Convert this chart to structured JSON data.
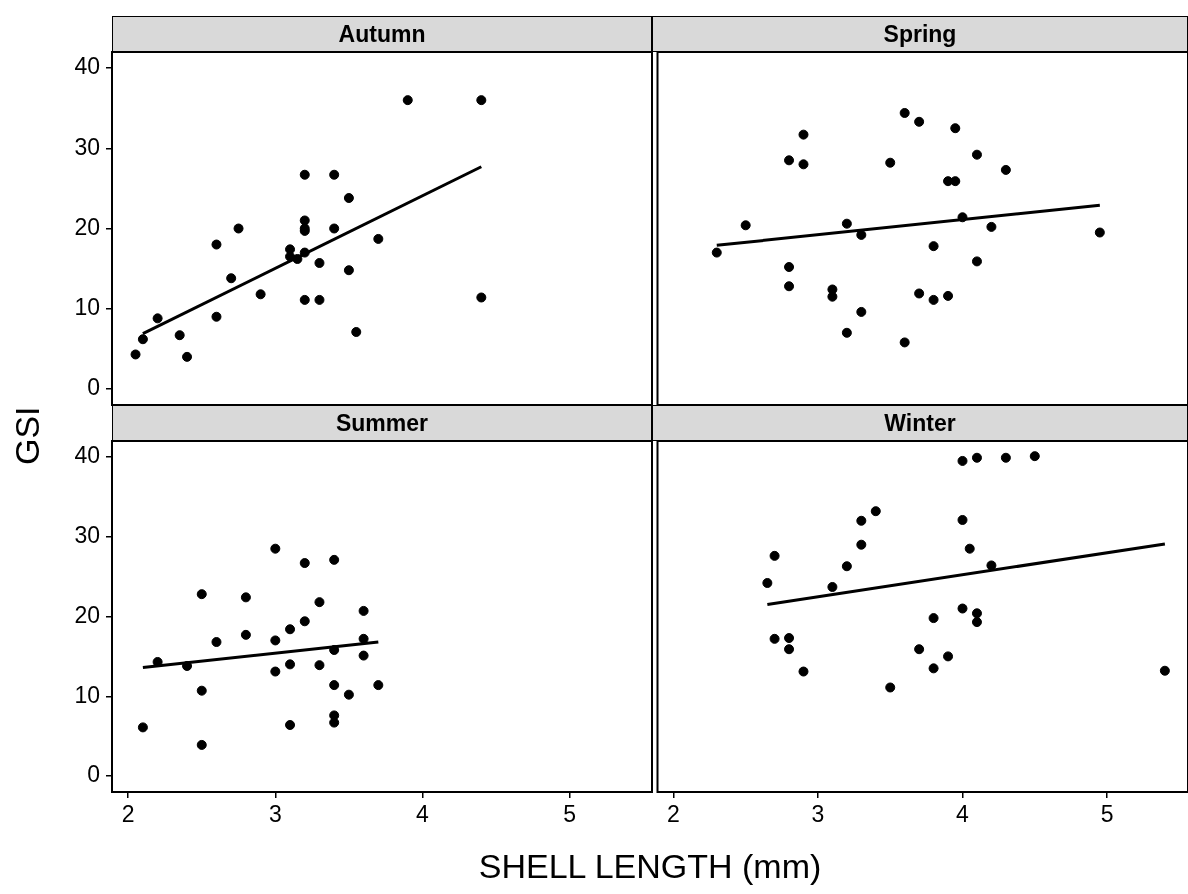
{
  "chart_data": [
    {
      "type": "scatter",
      "title": "Autumn",
      "ylabel": "GSI",
      "xlim": [
        1.89,
        5.56
      ],
      "ylim": [
        -2,
        42
      ],
      "xticks": [
        2,
        3,
        4,
        5
      ],
      "yticks": [
        0,
        10,
        20,
        30,
        40
      ],
      "tick_labels": "y",
      "grid": false,
      "legend": false,
      "marker": "circle",
      "series": [
        {
          "type": "scatter",
          "color": "#000000",
          "x": [
            2.05,
            2.1,
            2.2,
            2.35,
            2.4,
            2.6,
            2.6,
            2.7,
            2.75,
            2.9,
            3.1,
            3.1,
            3.15,
            3.2,
            3.2,
            3.2,
            3.2,
            3.2,
            3.2,
            3.3,
            3.3,
            3.4,
            3.4,
            3.5,
            3.5,
            3.55,
            3.7,
            3.9,
            4.4,
            4.4
          ],
          "values": [
            4.3,
            6.2,
            8.8,
            6.7,
            4.0,
            9.0,
            18.0,
            13.8,
            20.0,
            11.8,
            17.4,
            16.5,
            16.2,
            26.7,
            21.0,
            20.0,
            19.7,
            17.0,
            11.1,
            15.7,
            11.1,
            26.7,
            20.0,
            23.8,
            14.8,
            7.1,
            18.7,
            36.0,
            36.0,
            11.4
          ]
        },
        {
          "type": "line",
          "color": "#000000",
          "marker": "none",
          "line_style": "solid",
          "x": [
            2.1,
            4.4
          ],
          "values": [
            6.9,
            27.7
          ]
        }
      ]
    },
    {
      "type": "scatter",
      "title": "Spring",
      "xlim": [
        1.89,
        5.56
      ],
      "ylim": [
        -2,
        42
      ],
      "xticks": [
        2,
        3,
        4,
        5
      ],
      "yticks": [
        0,
        10,
        20,
        30,
        40
      ],
      "tick_labels": false,
      "grid": false,
      "legend": false,
      "marker": "circle",
      "series": [
        {
          "type": "scatter",
          "color": "#000000",
          "x": [
            2.3,
            2.5,
            2.8,
            2.8,
            2.8,
            2.9,
            2.9,
            3.1,
            3.1,
            3.2,
            3.2,
            3.3,
            3.3,
            3.5,
            3.6,
            3.6,
            3.7,
            3.7,
            3.8,
            3.8,
            3.9,
            3.95,
            3.9,
            3.95,
            4.0,
            4.1,
            4.1,
            4.2,
            4.3,
            4.95
          ],
          "values": [
            17.0,
            20.4,
            28.5,
            15.2,
            12.8,
            31.7,
            28.0,
            12.4,
            11.5,
            20.6,
            7.0,
            19.2,
            9.6,
            28.2,
            34.4,
            5.8,
            33.3,
            11.9,
            17.8,
            11.1,
            11.6,
            32.5,
            25.9,
            25.9,
            21.4,
            29.2,
            15.9,
            20.2,
            27.3,
            19.5
          ]
        },
        {
          "type": "line",
          "color": "#000000",
          "marker": "none",
          "line_style": "solid",
          "x": [
            2.3,
            4.95
          ],
          "values": [
            17.9,
            22.9
          ]
        }
      ]
    },
    {
      "type": "scatter",
      "title": "Summer",
      "xlabel": "SHELL LENGTH (mm)",
      "xlim": [
        1.89,
        5.56
      ],
      "ylim": [
        -2,
        42
      ],
      "xticks": [
        2,
        3,
        4,
        5
      ],
      "yticks": [
        0,
        10,
        20,
        30,
        40
      ],
      "grid": false,
      "legend": false,
      "marker": "circle",
      "series": [
        {
          "type": "scatter",
          "color": "#000000",
          "x": [
            2.1,
            2.2,
            2.4,
            2.5,
            2.5,
            2.5,
            2.6,
            2.8,
            2.8,
            3.0,
            3.0,
            3.0,
            3.1,
            3.1,
            3.1,
            3.2,
            3.2,
            3.3,
            3.3,
            3.4,
            3.4,
            3.4,
            3.4,
            3.4,
            3.5,
            3.6,
            3.6,
            3.6,
            3.7
          ],
          "values": [
            6.1,
            14.3,
            13.8,
            22.8,
            10.7,
            3.9,
            16.8,
            22.4,
            17.7,
            28.5,
            17.0,
            13.1,
            18.4,
            14.0,
            6.4,
            26.7,
            19.4,
            21.8,
            13.9,
            27.1,
            15.8,
            11.4,
            7.6,
            6.7,
            10.2,
            20.7,
            17.2,
            15.1,
            11.4
          ]
        },
        {
          "type": "line",
          "color": "#000000",
          "marker": "none",
          "line_style": "solid",
          "x": [
            2.1,
            3.7
          ],
          "values": [
            13.6,
            16.8
          ]
        }
      ]
    },
    {
      "type": "scatter",
      "title": "Winter",
      "xlim": [
        1.89,
        5.56
      ],
      "ylim": [
        -2,
        42
      ],
      "xticks": [
        2,
        3,
        4,
        5
      ],
      "yticks": [
        0,
        10,
        20,
        30,
        40
      ],
      "tick_labels": "x",
      "grid": false,
      "legend": false,
      "marker": "circle",
      "series": [
        {
          "type": "scatter",
          "color": "#000000",
          "x": [
            2.65,
            2.7,
            2.7,
            2.8,
            2.8,
            2.9,
            3.1,
            3.2,
            3.3,
            3.3,
            3.4,
            3.5,
            3.7,
            3.8,
            3.8,
            3.9,
            4.0,
            4.0,
            4.0,
            4.05,
            4.1,
            4.1,
            4.1,
            4.2,
            4.3,
            4.5,
            5.4
          ],
          "values": [
            24.2,
            27.6,
            17.2,
            17.3,
            15.9,
            13.1,
            23.7,
            26.3,
            32.0,
            29.0,
            33.2,
            11.1,
            15.9,
            19.8,
            13.5,
            15.0,
            39.5,
            32.1,
            21.0,
            28.5,
            39.9,
            20.4,
            19.3,
            26.4,
            39.9,
            40.1,
            13.2
          ]
        },
        {
          "type": "line",
          "color": "#000000",
          "marker": "none",
          "line_style": "solid",
          "x": [
            2.65,
            5.4
          ],
          "values": [
            21.5,
            29.1
          ]
        }
      ]
    }
  ]
}
